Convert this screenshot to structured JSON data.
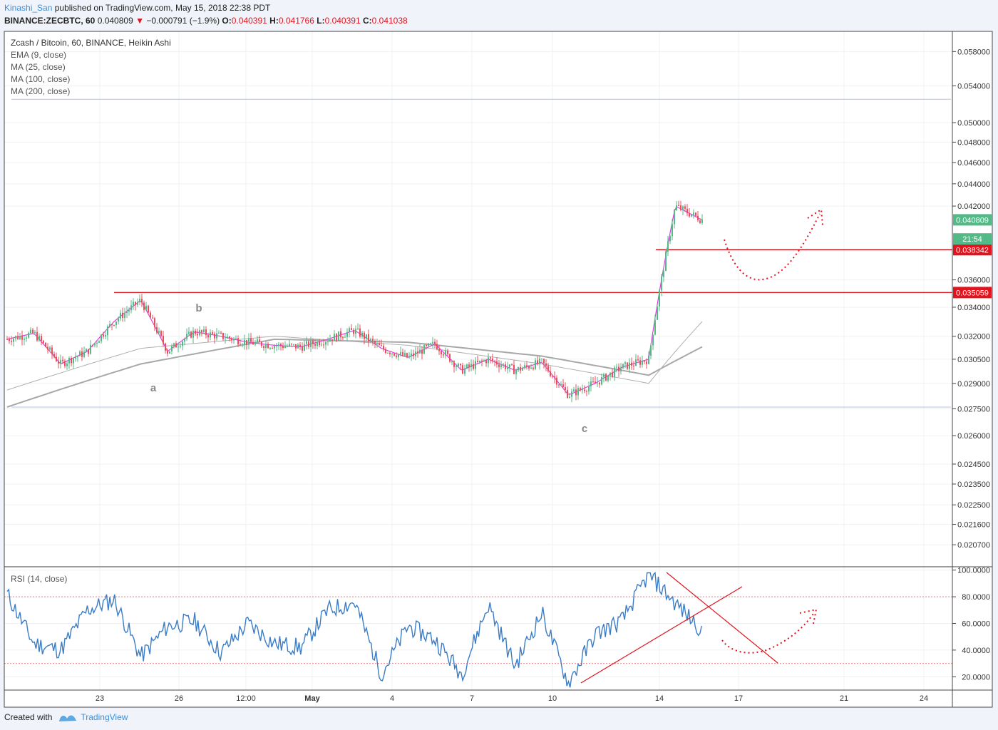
{
  "header": {
    "author": "Kinashi_San",
    "published_text": " published on TradingView.com, May 15, 2018 22:38 PDT",
    "symbol": "BINANCE:ZECBTC, 60",
    "last": "0.040809",
    "change_arrow": "▼",
    "change": "−0.000791 (−1.9%)",
    "o_label": "O:",
    "o_value": "0.040391",
    "h_label": "H:",
    "h_value": "0.041766",
    "l_label": "L:",
    "l_value": "0.040391",
    "c_label": "C:",
    "c_value": "0.041038"
  },
  "legend": {
    "title": "Zcash / Bitcoin, 60, BINANCE, Heikin Ashi",
    "items": [
      "EMA (9, close)",
      "MA (25, close)",
      "MA (100, close)",
      "MA (200, close)"
    ]
  },
  "rsi_label": "RSI (14, close)",
  "footer": {
    "created_with": "Created with",
    "brand": "TradingView"
  },
  "colors": {
    "up": "#53b987",
    "down": "#eb4d5c",
    "ema": "#e040e0",
    "ma25": "#c0c0c0",
    "ma100": "#b0b0b0",
    "ma200": "#a8a8a8",
    "rsi": "#3b7cc6",
    "annotation": "#e0141e",
    "support": "#b0c4e6",
    "price_tag": "#53b987"
  },
  "chart_data": [
    {
      "type": "candlestick",
      "title": "Zcash / Bitcoin, 60, BINANCE, Heikin Ashi",
      "y_scale": "log",
      "ylim": [
        0.0198,
        0.0605
      ],
      "y_ticks": [
        "0.058000",
        "0.054000",
        "0.050000",
        "0.048000",
        "0.046000",
        "0.044000",
        "0.042000",
        "0.036000",
        "0.034000",
        "0.032000",
        "0.030500",
        "0.029000",
        "0.027500",
        "0.026000",
        "0.024500",
        "0.023500",
        "0.022500",
        "0.021600",
        "0.020700"
      ],
      "x_ticks": [
        "23",
        "26",
        "12:00",
        "May",
        "4",
        "7",
        "10",
        "14",
        "17",
        "21",
        "24"
      ],
      "series": [
        {
          "name": "Heikin Ashi close",
          "x": [
            "Apr 20",
            "Apr 21",
            "Apr 22",
            "Apr 23",
            "Apr 24",
            "Apr 25",
            "Apr 26",
            "Apr 27",
            "Apr 28",
            "Apr 29",
            "Apr 30",
            "May 1",
            "May 2",
            "May 3",
            "May 4",
            "May 5",
            "May 6",
            "May 7",
            "May 8",
            "May 9",
            "May 10",
            "May 11",
            "May 12",
            "May 13",
            "May 14",
            "May 15",
            "May 16"
          ],
          "values": [
            0.0318,
            0.0322,
            0.0302,
            0.031,
            0.033,
            0.0345,
            0.031,
            0.0323,
            0.032,
            0.0316,
            0.0314,
            0.0313,
            0.0318,
            0.0324,
            0.0312,
            0.0306,
            0.0315,
            0.0298,
            0.0305,
            0.0298,
            0.0303,
            0.0283,
            0.029,
            0.03,
            0.0305,
            0.042,
            0.0408
          ]
        },
        {
          "name": "MA (200, close)",
          "x": [
            "Apr 20",
            "Apr 25",
            "Apr 30",
            "May 5",
            "May 10",
            "May 14",
            "May 16"
          ],
          "values": [
            0.0276,
            0.0302,
            0.0318,
            0.0316,
            0.0307,
            0.0295,
            0.0313
          ]
        },
        {
          "name": "MA (100, close)",
          "x": [
            "Apr 20",
            "Apr 25",
            "Apr 30",
            "May 5",
            "May 10",
            "May 14",
            "May 16"
          ],
          "values": [
            0.0286,
            0.0312,
            0.032,
            0.0314,
            0.0302,
            0.029,
            0.033
          ]
        }
      ],
      "levels": [
        {
          "label": "0.038342",
          "value": 0.038342,
          "color": "#e0141e"
        },
        {
          "label": "0.035059",
          "value": 0.035059,
          "color": "#e0141e"
        }
      ],
      "support_levels": [
        0.0276,
        0.0525
      ],
      "price_tags": [
        {
          "label": "0.040809",
          "value": 0.040809
        },
        {
          "label": "21:54",
          "value": 0.0398
        }
      ],
      "annotations": [
        "a",
        "b",
        "c"
      ]
    },
    {
      "type": "line",
      "title": "RSI (14, close)",
      "ylim": [
        10,
        102
      ],
      "y_ticks": [
        "100.0000",
        "80.0000",
        "60.0000",
        "40.0000",
        "20.0000"
      ],
      "reference_lines": [
        80,
        30
      ],
      "series": [
        {
          "name": "RSI (14, close)",
          "x": [
            "Apr 20",
            "Apr 21",
            "Apr 22",
            "Apr 23",
            "Apr 24",
            "Apr 25",
            "Apr 26",
            "Apr 27",
            "Apr 28",
            "Apr 29",
            "Apr 30",
            "May 1",
            "May 2",
            "May 3",
            "May 4",
            "May 5",
            "May 6",
            "May 7",
            "May 8",
            "May 9",
            "May 10",
            "May 11",
            "May 12",
            "May 13",
            "May 14",
            "May 15",
            "May 16"
          ],
          "values": [
            82,
            45,
            40,
            70,
            78,
            35,
            58,
            62,
            38,
            60,
            45,
            42,
            70,
            76,
            22,
            58,
            48,
            22,
            74,
            28,
            68,
            15,
            52,
            62,
            97,
            75,
            55
          ]
        }
      ]
    }
  ]
}
